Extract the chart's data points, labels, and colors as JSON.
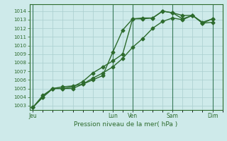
{
  "title": "",
  "xlabel": "Pression niveau de la mer( hPa )",
  "ylabel": "",
  "background_color": "#ceeaea",
  "grid_color": "#aacece",
  "line_color": "#2d6b2d",
  "vline_color": "#3a7a5a",
  "ylim": [
    1002.5,
    1014.8
  ],
  "yticks": [
    1003,
    1004,
    1005,
    1006,
    1007,
    1008,
    1009,
    1010,
    1011,
    1012,
    1013,
    1014
  ],
  "day_labels": [
    "Jeu",
    "Lun",
    "Ven",
    "Sam",
    "Dim"
  ],
  "day_positions": [
    0,
    48,
    60,
    84,
    108
  ],
  "xlim": [
    -2,
    114
  ],
  "series": [
    {
      "x": [
        0,
        6,
        12,
        18,
        24,
        30,
        36,
        42,
        48,
        54,
        60,
        66,
        72,
        78,
        84,
        90,
        96,
        102,
        108
      ],
      "y": [
        1002.8,
        1004.2,
        1005.0,
        1005.2,
        1005.3,
        1005.5,
        1006.0,
        1006.5,
        1009.2,
        1011.8,
        1013.1,
        1013.2,
        1013.2,
        1014.0,
        1013.8,
        1013.5,
        1013.5,
        1012.7,
        1013.1
      ],
      "marker": "D",
      "markersize": 2.5,
      "linewidth": 1.0
    },
    {
      "x": [
        0,
        6,
        12,
        18,
        24,
        30,
        36,
        42,
        48,
        54,
        60,
        66,
        72,
        78,
        84,
        90,
        96,
        102,
        108
      ],
      "y": [
        1002.8,
        1004.0,
        1005.0,
        1005.0,
        1005.2,
        1005.8,
        1006.8,
        1007.5,
        1008.2,
        1009.0,
        1013.1,
        1013.1,
        1013.2,
        1014.0,
        1013.8,
        1013.1,
        1013.5,
        1012.6,
        1013.1
      ],
      "marker": "D",
      "markersize": 2.5,
      "linewidth": 1.0
    },
    {
      "x": [
        0,
        6,
        12,
        18,
        24,
        30,
        36,
        42,
        48,
        54,
        60,
        66,
        72,
        78,
        84,
        90,
        96,
        102,
        108
      ],
      "y": [
        1002.8,
        1004.0,
        1005.0,
        1005.0,
        1005.0,
        1005.5,
        1006.2,
        1006.8,
        1007.5,
        1008.5,
        1009.8,
        1010.8,
        1012.0,
        1012.8,
        1013.2,
        1013.0,
        1013.5,
        1012.6,
        1012.7
      ],
      "marker": "D",
      "markersize": 2.5,
      "linewidth": 1.0
    }
  ]
}
